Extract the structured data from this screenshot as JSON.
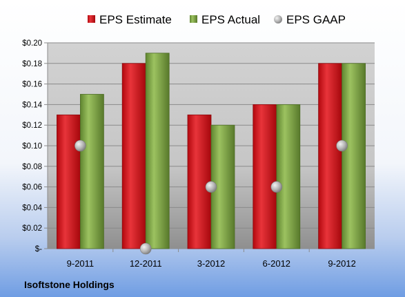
{
  "chart_data": {
    "type": "bar",
    "categories": [
      "9-2011",
      "12-2011",
      "3-2012",
      "6-2012",
      "9-2012"
    ],
    "series": [
      {
        "name": "EPS Estimate",
        "kind": "bar",
        "color": "#c8151b",
        "values": [
          0.13,
          0.18,
          0.13,
          0.14,
          0.18
        ]
      },
      {
        "name": "EPS Actual",
        "kind": "bar",
        "color": "#78a040",
        "values": [
          0.15,
          0.19,
          0.12,
          0.14,
          0.18
        ]
      },
      {
        "name": "EPS GAAP",
        "kind": "scatter",
        "color": "#a8a8a8",
        "values": [
          0.1,
          0.0,
          0.06,
          0.06,
          0.1
        ]
      }
    ],
    "ylim": [
      0,
      0.2
    ],
    "yticks": [
      0,
      0.02,
      0.04,
      0.06,
      0.08,
      0.1,
      0.12,
      0.14,
      0.16,
      0.18,
      0.2
    ],
    "ytick_labels": [
      "$-",
      "$0.02",
      "$0.04",
      "$0.06",
      "$0.08",
      "$0.10",
      "$0.12",
      "$0.14",
      "$0.16",
      "$0.18",
      "$0.20"
    ],
    "grid": true,
    "legend_position": "top"
  },
  "footer": {
    "company": "Isoftstone Holdings"
  }
}
